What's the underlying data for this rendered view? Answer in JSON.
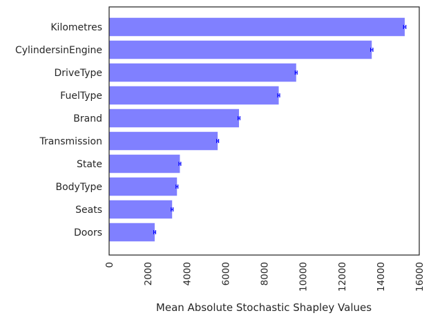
{
  "chart_data": {
    "type": "bar",
    "orientation": "horizontal",
    "categories": [
      "Kilometres",
      "CylindersinEngine",
      "DriveType",
      "FuelType",
      "Brand",
      "Transmission",
      "State",
      "BodyType",
      "Seats",
      "Doors"
    ],
    "values": [
      15250,
      13550,
      9650,
      8750,
      6700,
      5600,
      3650,
      3500,
      3250,
      2350
    ],
    "errors": [
      60,
      60,
      50,
      50,
      50,
      50,
      50,
      50,
      50,
      50
    ],
    "xlabel": "Mean Absolute Stochastic Shapley Values",
    "ylabel": "",
    "xlim": [
      0,
      16000
    ],
    "xticks": [
      "0",
      "2000",
      "4000",
      "6000",
      "8000",
      "10000",
      "12000",
      "14000",
      "16000"
    ],
    "bar_color": "#8080ff",
    "error_color": "#0000ff",
    "grid": false
  }
}
